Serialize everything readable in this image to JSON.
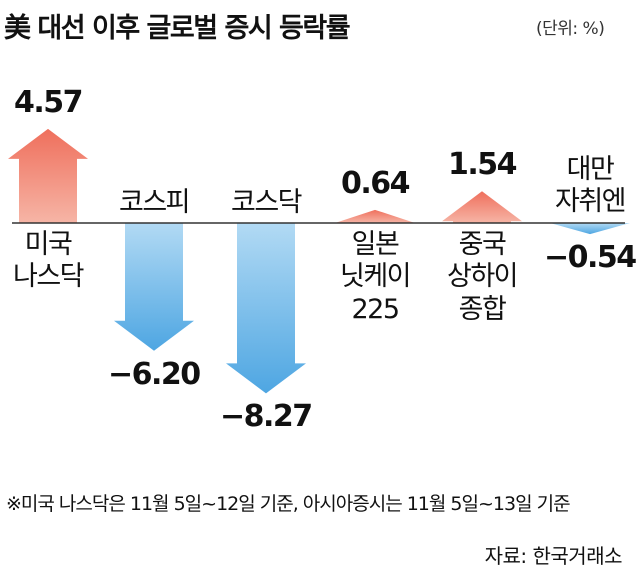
{
  "title": "美 대선 이후 글로벌 증시 등락률",
  "unit": "(단위: %)",
  "chart_data": {
    "type": "bar",
    "title": "美 대선 이후 글로벌 증시 등락률",
    "categories": [
      [
        "미국",
        "나스닥"
      ],
      [
        "코스피"
      ],
      [
        "코스닥"
      ],
      [
        "일본",
        "닛케이",
        "225"
      ],
      [
        "중국",
        "상하이",
        "종합"
      ],
      [
        "대만",
        "자취엔"
      ]
    ],
    "values": [
      4.57,
      -6.2,
      -8.27,
      0.64,
      1.54,
      -0.54
    ],
    "value_labels": [
      "4.57",
      "−6.20",
      "−8.27",
      "0.64",
      "1.54",
      "−0.54"
    ],
    "colors": {
      "positive": "#ec7d6a",
      "negative": "#6fb5e6",
      "axis": "#333333"
    }
  },
  "note": "※미국 나스닥은 11월 5일~12일 기준, 아시아증시는 11월 5일~13일 기준",
  "source": "자료: 한국거래소"
}
